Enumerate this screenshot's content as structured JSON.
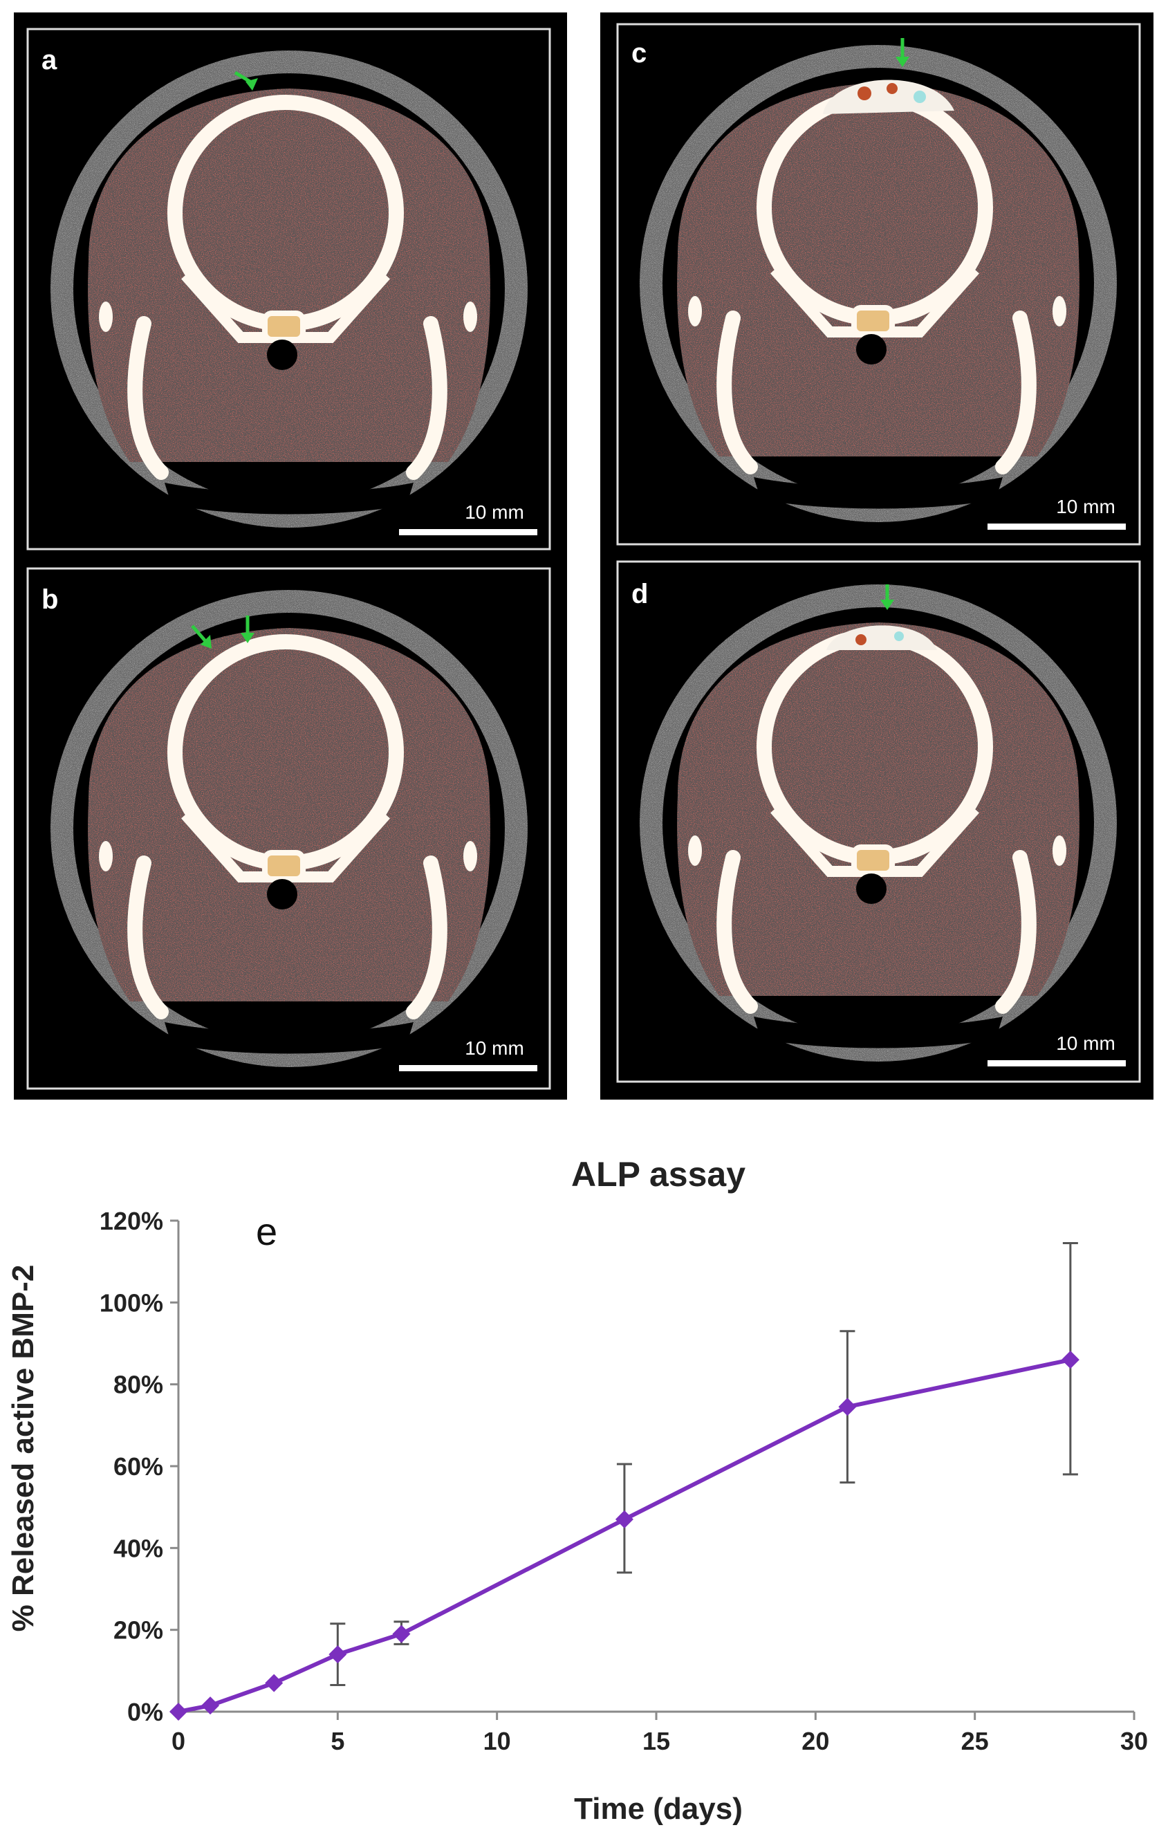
{
  "panels": [
    {
      "letter": "a",
      "scale_bar": "10 mm"
    },
    {
      "letter": "b",
      "scale_bar": "10 mm"
    },
    {
      "letter": "c",
      "scale_bar": "10 mm"
    },
    {
      "letter": "d",
      "scale_bar": "10 mm"
    }
  ],
  "chart_data": {
    "type": "line",
    "title": "ALP assay",
    "panel_label": "e",
    "xlabel": "Time (days)",
    "ylabel": "% Released active BMP-2",
    "xlim": [
      0,
      30
    ],
    "ylim": [
      0,
      120
    ],
    "x_ticks": [
      "0",
      "5",
      "10",
      "15",
      "20",
      "25",
      "30"
    ],
    "y_ticks": [
      "0%",
      "20%",
      "40%",
      "60%",
      "80%",
      "100%",
      "120%"
    ],
    "series": [
      {
        "name": "Released active BMP-2",
        "color": "#7b2fbe",
        "x": [
          0,
          1,
          3,
          5,
          7,
          14,
          21,
          28
        ],
        "y": [
          0,
          1.5,
          7,
          14,
          19,
          47,
          74.5,
          86
        ],
        "err_low": [
          0,
          0,
          0,
          6.5,
          16.5,
          34,
          56,
          58
        ],
        "err_high": [
          0,
          0,
          0,
          21.5,
          22,
          60.5,
          93,
          114.5
        ]
      }
    ]
  },
  "colors": {
    "panel_bg": "#000000",
    "bone": "#fff8ee",
    "tissue": "#6a5a58",
    "arrow": "#2ecc40",
    "axis": "#8a8a8a"
  }
}
